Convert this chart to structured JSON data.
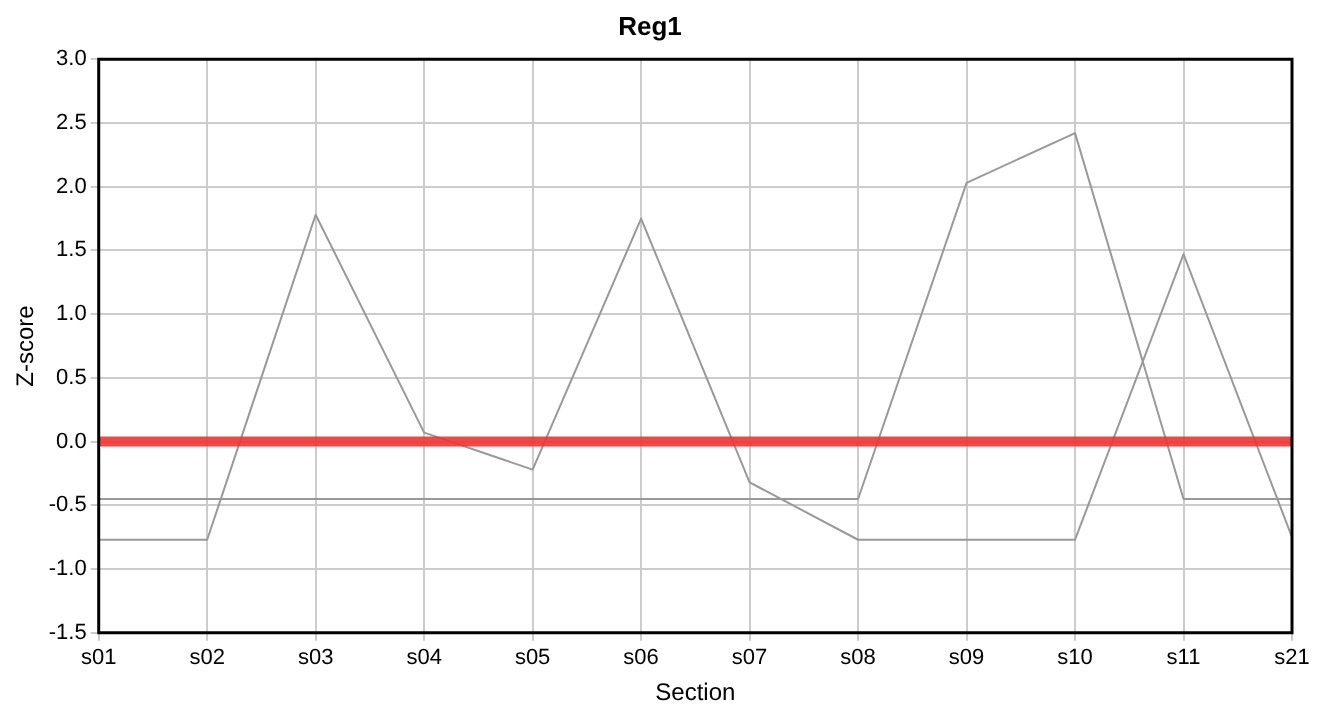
{
  "chart_data": {
    "type": "line",
    "title": "Reg1",
    "xlabel": "Section",
    "ylabel": "Z-score",
    "categories": [
      "s01",
      "s02",
      "s03",
      "s04",
      "s05",
      "s06",
      "s07",
      "s08",
      "s09",
      "s10",
      "s11",
      "s21"
    ],
    "series": [
      {
        "color": "#999999",
        "values": [
          -0.77,
          -0.77,
          1.78,
          0.07,
          -0.22,
          1.75,
          -0.32,
          -0.77,
          -0.77,
          -0.77,
          1.47,
          -0.75
        ]
      },
      {
        "color": "#999999",
        "values": [
          -0.45,
          -0.45,
          -0.45,
          -0.45,
          -0.45,
          -0.45,
          -0.45,
          -0.45,
          2.03,
          2.42,
          -0.45,
          -0.45
        ]
      }
    ],
    "ylim": [
      -1.5,
      3.0
    ],
    "yticks": [
      {
        "value": -1.5,
        "label": "-1.5"
      },
      {
        "value": -1,
        "label": "-1.0"
      },
      {
        "value": -0.5,
        "label": "-0.5"
      },
      {
        "value": 0,
        "label": "0.0"
      },
      {
        "value": 0.5,
        "label": "0.5"
      },
      {
        "value": 1,
        "label": "1.0"
      },
      {
        "value": 1.5,
        "label": "1.5"
      },
      {
        "value": 2,
        "label": "2.0"
      },
      {
        "value": 2.5,
        "label": "2.5"
      },
      {
        "value": 3,
        "label": "3.0"
      }
    ],
    "ref_lines": [
      {
        "axis": "y",
        "value": 0,
        "color": "#ee3333"
      }
    ],
    "grid": true,
    "legend": false,
    "marker": "none",
    "line_style": "solid"
  }
}
